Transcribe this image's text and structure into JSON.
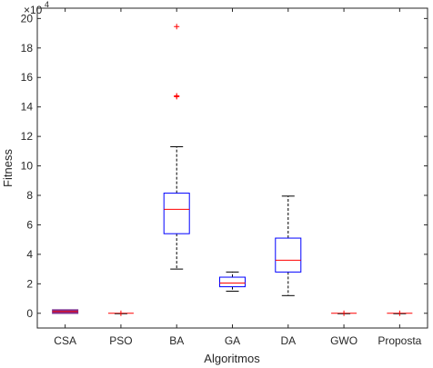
{
  "chart_data": {
    "type": "box",
    "xlabel": "Algoritmos",
    "ylabel": "Fitness",
    "exponent_label": "×10",
    "exponent_power": "4",
    "ylim": [
      -1,
      20.7
    ],
    "yticks": [
      0,
      2,
      4,
      6,
      8,
      10,
      12,
      14,
      16,
      18,
      20
    ],
    "ytick_labels": [
      "0",
      "2",
      "4",
      "6",
      "8",
      "10",
      "12",
      "14",
      "16",
      "18",
      "20"
    ],
    "grid": false,
    "colors": {
      "box": "#0000ff",
      "median": "#ff0000",
      "whisker": "#000000",
      "outlier": "#ff0000",
      "collapsed_box": "#7e2f8e"
    },
    "categories": [
      "CSA",
      "PSO",
      "BA",
      "GA",
      "DA",
      "GWO",
      "Proposta"
    ],
    "boxes": [
      {
        "min": 0.05,
        "q1": 0.1,
        "median": 0.12,
        "q3": 0.15,
        "max": 0.18,
        "outliers": []
      },
      {
        "min": 0,
        "q1": 0,
        "median": 0,
        "q3": 0,
        "max": 0,
        "outliers": []
      },
      {
        "min": 3.0,
        "q1": 5.4,
        "median": 7.05,
        "q3": 8.15,
        "max": 11.3,
        "outliers": [
          14.7,
          14.75,
          19.45
        ]
      },
      {
        "min": 1.5,
        "q1": 1.8,
        "median": 2.05,
        "q3": 2.45,
        "max": 2.8,
        "outliers": []
      },
      {
        "min": 1.2,
        "q1": 2.8,
        "median": 3.6,
        "q3": 5.1,
        "max": 7.95,
        "outliers": []
      },
      {
        "min": 0,
        "q1": 0,
        "median": 0,
        "q3": 0,
        "max": 0,
        "outliers": []
      },
      {
        "min": 0,
        "q1": 0,
        "median": 0,
        "q3": 0,
        "max": 0,
        "outliers": []
      }
    ]
  }
}
